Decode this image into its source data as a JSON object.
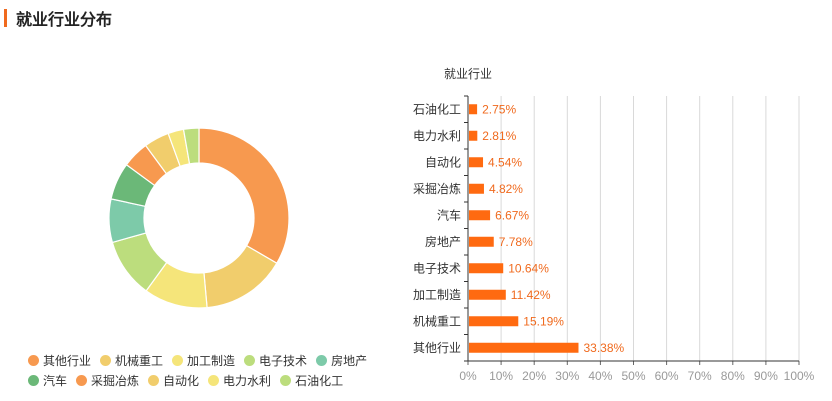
{
  "page": {
    "title": "就业行业分布"
  },
  "colors": {
    "accent": "#f06a1e",
    "bar": "#ff6a10",
    "bar_label": "#f06a1e",
    "grid": "#d9d9d9"
  },
  "chart_data": [
    {
      "type": "pie",
      "variant": "donut",
      "title": "",
      "slices": [
        {
          "label": "其他行业",
          "value": 33.38,
          "color": "#f7994f"
        },
        {
          "label": "机械重工",
          "value": 15.19,
          "color": "#f1cd6c"
        },
        {
          "label": "加工制造",
          "value": 11.42,
          "color": "#f5e57a"
        },
        {
          "label": "电子技术",
          "value": 10.64,
          "color": "#bcdd7d"
        },
        {
          "label": "房地产",
          "value": 7.78,
          "color": "#7dcaa9"
        },
        {
          "label": "汽车",
          "value": 6.67,
          "color": "#6bb878"
        },
        {
          "label": "采掘冶炼",
          "value": 4.82,
          "color": "#f7994f"
        },
        {
          "label": "自动化",
          "value": 4.54,
          "color": "#f1cd6c"
        },
        {
          "label": "电力水利",
          "value": 2.81,
          "color": "#f5e57a"
        },
        {
          "label": "石油化工",
          "value": 2.75,
          "color": "#bcdd7d"
        }
      ],
      "legend": "bottom"
    },
    {
      "type": "bar",
      "orientation": "horizontal",
      "title": "就业行业",
      "categories": [
        "石油化工",
        "电力水利",
        "自动化",
        "采掘冶炼",
        "汽车",
        "房地产",
        "电子技术",
        "加工制造",
        "机械重工",
        "其他行业"
      ],
      "values": [
        2.75,
        2.81,
        4.54,
        4.82,
        6.67,
        7.78,
        10.64,
        11.42,
        15.19,
        33.38
      ],
      "value_labels": [
        "2.75%",
        "2.81%",
        "4.54%",
        "4.82%",
        "6.67%",
        "7.78%",
        "10.64%",
        "11.42%",
        "15.19%",
        "33.38%"
      ],
      "xlim": [
        0,
        100
      ],
      "xticks": [
        "0%",
        "10%",
        "20%",
        "30%",
        "40%",
        "50%",
        "60%",
        "70%",
        "80%",
        "90%",
        "100%"
      ],
      "grid": true
    }
  ]
}
